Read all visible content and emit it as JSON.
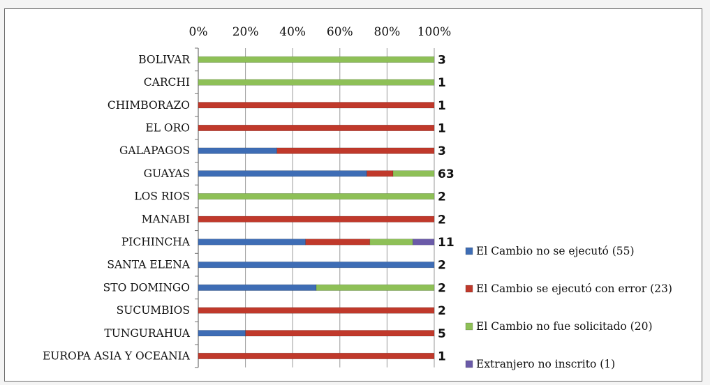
{
  "chart_data": {
    "type": "bar",
    "orientation": "horizontal",
    "stacked": "percent",
    "title": "",
    "xlabel": "",
    "ylabel": "",
    "xlim": [
      0,
      100
    ],
    "x_ticks": [
      "0%",
      "20%",
      "40%",
      "60%",
      "80%",
      "100%"
    ],
    "x_axis_position": "top",
    "grid": true,
    "legend_position": "right",
    "categories": [
      "BOLIVAR",
      "CARCHI",
      "CHIMBORAZO",
      "EL ORO",
      "GALAPAGOS",
      "GUAYAS",
      "LOS RIOS",
      "MANABI",
      "PICHINCHA",
      "SANTA ELENA",
      "STO DOMINGO",
      "SUCUMBIOS",
      "TUNGURAHUA",
      "EUROPA ASIA Y OCEANIA"
    ],
    "totals": [
      "3",
      "1",
      "1",
      "1",
      "3",
      "63",
      "2",
      "2",
      "11",
      "2",
      "2",
      "2",
      "5",
      "1"
    ],
    "series": [
      {
        "name": "El Cambio no se ejecutó (55)",
        "color": "#3e6db5",
        "values": [
          0,
          0,
          0,
          0,
          1,
          45,
          0,
          0,
          5,
          2,
          1,
          0,
          1,
          0
        ]
      },
      {
        "name": "El Cambio se ejecutó con error (23)",
        "color": "#c0392b",
        "values": [
          0,
          0,
          1,
          1,
          2,
          7,
          0,
          2,
          3,
          0,
          0,
          2,
          4,
          1
        ]
      },
      {
        "name": "El Cambio no fue solicitado (20)",
        "color": "#8ec057",
        "values": [
          3,
          1,
          0,
          0,
          0,
          11,
          2,
          0,
          2,
          0,
          1,
          0,
          0,
          0
        ]
      },
      {
        "name": "Extranjero no inscrito (1)",
        "color": "#6a5aa8",
        "values": [
          0,
          0,
          0,
          0,
          0,
          0,
          0,
          0,
          1,
          0,
          0,
          0,
          0,
          0
        ]
      }
    ]
  }
}
